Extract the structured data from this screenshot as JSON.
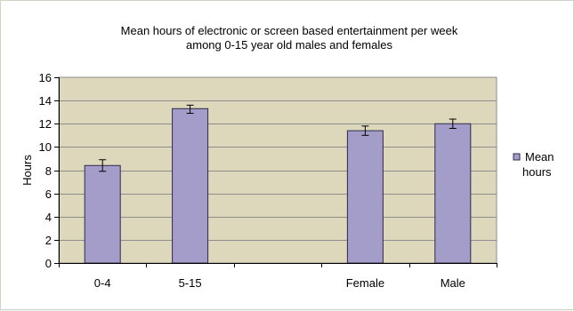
{
  "chart_data": {
    "type": "bar",
    "title": [
      "Mean hours of electronic or screen based entertainment per week",
      "among 0-15 year old males and females"
    ],
    "xlabel": "",
    "ylabel": "Hours",
    "ylim": [
      0,
      16
    ],
    "yticks": [
      0,
      2,
      4,
      6,
      8,
      10,
      12,
      14,
      16
    ],
    "categories": [
      "0-4",
      "5-15",
      "",
      "Female",
      "Male"
    ],
    "series": [
      {
        "name": "Mean hours",
        "values": [
          8.4,
          13.3,
          null,
          11.4,
          12.0
        ],
        "error_low": [
          7.9,
          12.9,
          null,
          11.0,
          11.6
        ],
        "error_high": [
          8.9,
          13.6,
          null,
          11.8,
          12.4
        ]
      }
    ],
    "grid": true,
    "legend_position": "right",
    "legend_labels": [
      "Mean",
      "hours"
    ],
    "colors": {
      "bar_fill": "#a59dc9",
      "bar_stroke": "#2e2a4a",
      "plot_background": "#ddd8bc",
      "grid": "#8d8d8d",
      "axis": "#000000"
    }
  }
}
